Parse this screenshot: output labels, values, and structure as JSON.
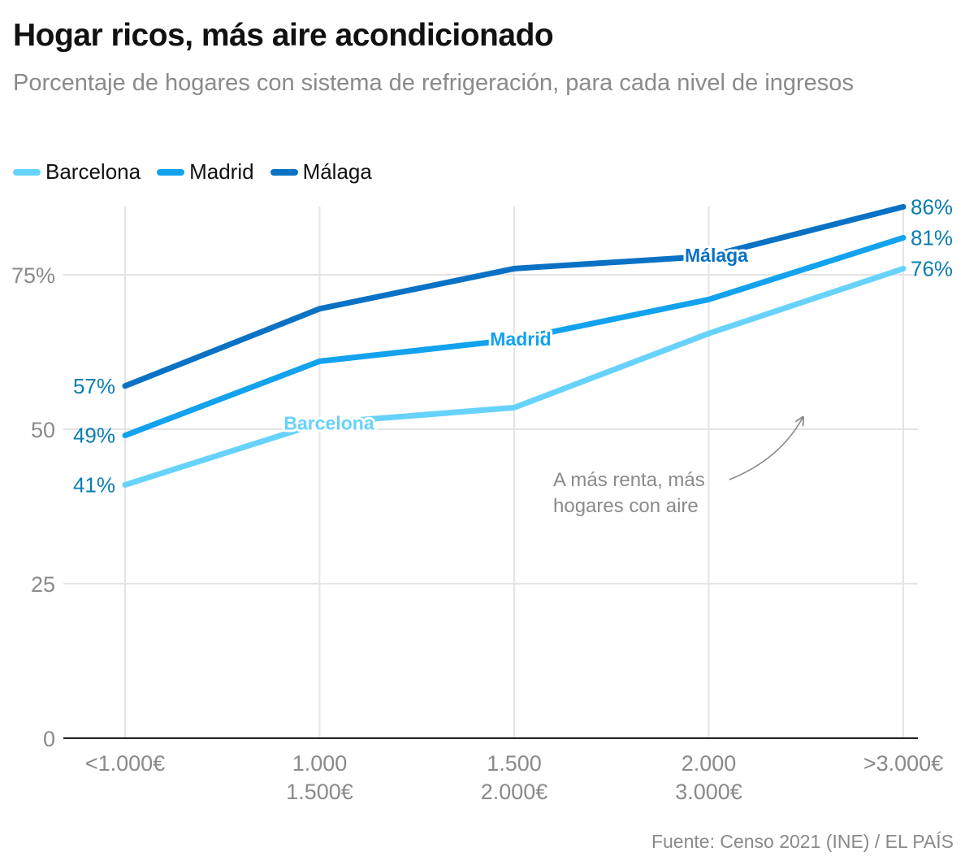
{
  "header": {
    "title": "Hogar ricos, más aire acondicionado",
    "subtitle": "Porcentaje de hogares con sistema de refrigeración, para cada nivel de ingresos"
  },
  "source": "Fuente: Censo 2021 (INE) / EL PAÍS",
  "annotation": [
    "A más renta, más",
    "hogares con aire"
  ],
  "chart_data": {
    "type": "line",
    "categories": [
      [
        "<1.000€"
      ],
      [
        "1.000",
        "1.500€"
      ],
      [
        "1.500",
        "2.000€"
      ],
      [
        "2.000",
        "3.000€"
      ],
      [
        ">3.000€"
      ]
    ],
    "ylim": [
      0,
      86
    ],
    "yticks": [
      {
        "value": 0,
        "label": "0"
      },
      {
        "value": 25,
        "label": "25"
      },
      {
        "value": 50,
        "label": "50"
      },
      {
        "value": 75,
        "label": "75%"
      }
    ],
    "grid": true,
    "legend_position": "top-left",
    "series": [
      {
        "name": "Barcelona",
        "color": "#67d2fb",
        "label_color": "#0a7fb0",
        "values": [
          41,
          51,
          53.5,
          65.5,
          76
        ],
        "start_label": "41%",
        "end_label": "76%"
      },
      {
        "name": "Madrid",
        "color": "#12a2ee",
        "label_color": "#0a7fb0",
        "values": [
          49,
          61,
          64.5,
          71,
          81
        ],
        "start_label": "49%",
        "end_label": "81%"
      },
      {
        "name": "Málaga",
        "color": "#0a72c4",
        "label_color": "#0a7fb0",
        "values": [
          57,
          69.5,
          76,
          78,
          86
        ],
        "start_label": "57%",
        "end_label": "86%"
      }
    ]
  }
}
